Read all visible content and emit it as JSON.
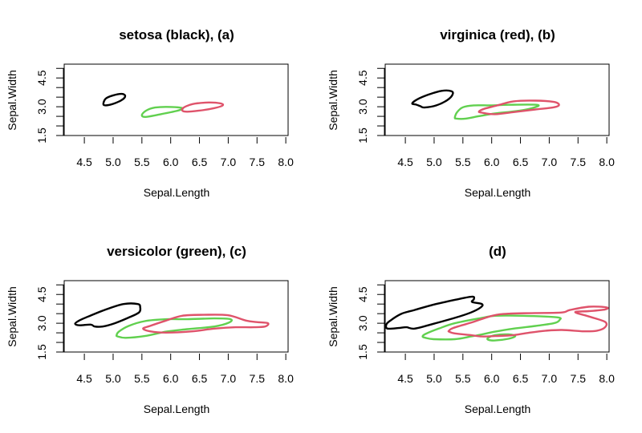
{
  "chart_data": [
    {
      "type": "line",
      "title": "setosa (black), (a)",
      "xlabel": "Sepal.Length",
      "ylabel": "Sepal.Width",
      "xlim": [
        4.15,
        8.04
      ],
      "ylim": [
        1.5,
        5.22
      ],
      "xticks": [
        "4.5",
        "5.0",
        "5.5",
        "6.0",
        "6.5",
        "7.0",
        "7.5",
        "8.0"
      ],
      "yticks": [
        1.5,
        2.0,
        2.5,
        3.0,
        3.5,
        4.0,
        4.5,
        5.0
      ],
      "ytick_labels": [
        "1.5",
        "3.0",
        "4.5"
      ],
      "grid": false,
      "series": [
        {
          "color": "#000000",
          "contours": [
            [
              [
                4.83,
                3.14
              ],
              [
                4.87,
                3.42
              ],
              [
                4.99,
                3.58
              ],
              [
                5.15,
                3.67
              ],
              [
                5.21,
                3.56
              ],
              [
                5.15,
                3.35
              ],
              [
                4.99,
                3.14
              ],
              [
                4.87,
                3.07
              ]
            ]
          ]
        },
        {
          "color": "#61D04F",
          "contours": [
            [
              [
                5.5,
                2.56
              ],
              [
                5.57,
                2.79
              ],
              [
                5.73,
                2.96
              ],
              [
                6.01,
                2.99
              ],
              [
                6.21,
                2.92
              ],
              [
                6.1,
                2.78
              ],
              [
                5.83,
                2.61
              ],
              [
                5.57,
                2.47
              ]
            ]
          ]
        },
        {
          "color": "#DF536B",
          "contours": [
            [
              [
                6.21,
                2.92
              ],
              [
                6.38,
                3.14
              ],
              [
                6.66,
                3.22
              ],
              [
                6.87,
                3.17
              ],
              [
                6.9,
                3.06
              ],
              [
                6.76,
                2.93
              ],
              [
                6.48,
                2.79
              ],
              [
                6.24,
                2.75
              ]
            ]
          ]
        }
      ]
    },
    {
      "type": "line",
      "title": "virginica (red), (b)",
      "xlabel": "Sepal.Length",
      "ylabel": "Sepal.Width",
      "xlim": [
        4.15,
        8.04
      ],
      "ylim": [
        1.5,
        5.22
      ],
      "xticks": [
        "4.5",
        "5.0",
        "5.5",
        "6.0",
        "6.5",
        "7.0",
        "7.5",
        "8.0"
      ],
      "yticks": [
        1.5,
        2.0,
        2.5,
        3.0,
        3.5,
        4.0,
        4.5,
        5.0
      ],
      "ytick_labels": [
        "1.5",
        "3.0",
        "4.5"
      ],
      "grid": false,
      "series": [
        {
          "color": "#000000",
          "contours": [
            [
              [
                4.62,
                3.17
              ],
              [
                4.71,
                3.39
              ],
              [
                4.9,
                3.63
              ],
              [
                5.13,
                3.83
              ],
              [
                5.3,
                3.81
              ],
              [
                5.32,
                3.63
              ],
              [
                5.23,
                3.35
              ],
              [
                5.04,
                3.07
              ],
              [
                4.83,
                2.96
              ],
              [
                4.76,
                3.03
              ],
              [
                4.69,
                3.11
              ]
            ]
          ]
        },
        {
          "color": "#61D04F",
          "contours": [
            [
              [
                5.36,
                2.44
              ],
              [
                5.4,
                2.72
              ],
              [
                5.5,
                2.97
              ],
              [
                5.69,
                3.07
              ],
              [
                6.01,
                3.07
              ],
              [
                6.29,
                3.1
              ],
              [
                6.78,
                3.1
              ],
              [
                6.75,
                2.97
              ],
              [
                6.48,
                2.79
              ],
              [
                6.06,
                2.65
              ],
              [
                5.78,
                2.51
              ],
              [
                5.55,
                2.38
              ],
              [
                5.39,
                2.38
              ]
            ]
          ]
        },
        {
          "color": "#DF536B",
          "contours": [
            [
              [
                5.78,
                2.75
              ],
              [
                5.87,
                2.89
              ],
              [
                6.1,
                3.07
              ],
              [
                6.38,
                3.28
              ],
              [
                6.76,
                3.32
              ],
              [
                7.08,
                3.25
              ],
              [
                7.17,
                3.1
              ],
              [
                7.08,
                2.97
              ],
              [
                6.76,
                2.86
              ],
              [
                6.38,
                2.72
              ],
              [
                6.06,
                2.61
              ],
              [
                5.83,
                2.69
              ]
            ]
          ]
        }
      ]
    },
    {
      "type": "line",
      "title": "versicolor (green), (c)",
      "xlabel": "Sepal.Length",
      "ylabel": "Sepal.Width",
      "xlim": [
        4.15,
        8.04
      ],
      "ylim": [
        1.5,
        5.22
      ],
      "xticks": [
        "4.5",
        "5.0",
        "5.5",
        "6.0",
        "6.5",
        "7.0",
        "7.5",
        "8.0"
      ],
      "yticks": [
        1.5,
        2.0,
        2.5,
        3.0,
        3.5,
        4.0,
        4.5,
        5.0
      ],
      "ytick_labels": [
        "1.5",
        "3.0",
        "4.5"
      ],
      "grid": false,
      "series": [
        {
          "color": "#000000",
          "contours": [
            [
              [
                4.34,
                2.97
              ],
              [
                4.41,
                3.14
              ],
              [
                4.57,
                3.35
              ],
              [
                4.85,
                3.69
              ],
              [
                5.18,
                4.0
              ],
              [
                5.43,
                4.0
              ],
              [
                5.47,
                3.83
              ],
              [
                5.45,
                3.56
              ],
              [
                5.26,
                3.28
              ],
              [
                5.03,
                3.0
              ],
              [
                4.82,
                2.83
              ],
              [
                4.68,
                2.83
              ],
              [
                4.61,
                2.93
              ],
              [
                4.42,
                2.89
              ]
            ]
          ]
        },
        {
          "color": "#61D04F",
          "contours": [
            [
              [
                5.06,
                2.38
              ],
              [
                5.1,
                2.56
              ],
              [
                5.27,
                2.86
              ],
              [
                5.55,
                3.11
              ],
              [
                5.92,
                3.21
              ],
              [
                6.29,
                3.21
              ],
              [
                6.76,
                3.25
              ],
              [
                7.04,
                3.21
              ],
              [
                7.01,
                3.03
              ],
              [
                6.76,
                2.83
              ],
              [
                6.29,
                2.69
              ],
              [
                5.92,
                2.56
              ],
              [
                5.55,
                2.33
              ],
              [
                5.22,
                2.24
              ],
              [
                5.08,
                2.31
              ]
            ]
          ]
        },
        {
          "color": "#DF536B",
          "contours": [
            [
              [
                5.52,
                2.72
              ],
              [
                5.64,
                2.86
              ],
              [
                5.92,
                3.14
              ],
              [
                6.2,
                3.39
              ],
              [
                6.57,
                3.44
              ],
              [
                6.99,
                3.42
              ],
              [
                7.31,
                3.14
              ],
              [
                7.5,
                3.06
              ],
              [
                7.69,
                3.0
              ],
              [
                7.64,
                2.83
              ],
              [
                7.45,
                2.79
              ],
              [
                7.13,
                2.79
              ],
              [
                6.76,
                2.72
              ],
              [
                6.38,
                2.58
              ],
              [
                5.92,
                2.51
              ],
              [
                5.64,
                2.58
              ]
            ]
          ]
        }
      ]
    },
    {
      "type": "line",
      "title": "(d)",
      "xlabel": "Sepal.Length",
      "ylabel": "Sepal.Width",
      "xlim": [
        4.15,
        8.04
      ],
      "ylim": [
        1.5,
        5.22
      ],
      "xticks": [
        "4.5",
        "5.0",
        "5.5",
        "6.0",
        "6.5",
        "7.0",
        "7.5",
        "8.0"
      ],
      "yticks": [
        1.5,
        2.0,
        2.5,
        3.0,
        3.5,
        4.0,
        4.5,
        5.0
      ],
      "ytick_labels": [
        "1.5",
        "3.0",
        "4.5"
      ],
      "grid": false,
      "series": [
        {
          "color": "#000000",
          "contours": [
            [
              [
                4.17,
                2.93
              ],
              [
                4.24,
                3.14
              ],
              [
                4.43,
                3.49
              ],
              [
                4.66,
                3.69
              ],
              [
                4.99,
                3.97
              ],
              [
                5.36,
                4.22
              ],
              [
                5.66,
                4.39
              ],
              [
                5.69,
                4.25
              ],
              [
                5.66,
                4.11
              ],
              [
                5.83,
                4.0
              ],
              [
                5.81,
                3.83
              ],
              [
                5.64,
                3.56
              ],
              [
                5.36,
                3.28
              ],
              [
                4.99,
                2.97
              ],
              [
                4.66,
                2.72
              ],
              [
                4.52,
                2.79
              ],
              [
                4.38,
                2.75
              ],
              [
                4.19,
                2.72
              ]
            ]
          ]
        },
        {
          "color": "#61D04F",
          "contours": [
            [
              [
                4.8,
                2.31
              ],
              [
                4.85,
                2.44
              ],
              [
                5.08,
                2.72
              ],
              [
                5.36,
                3.0
              ],
              [
                5.83,
                3.28
              ],
              [
                6.06,
                3.39
              ],
              [
                6.52,
                3.39
              ],
              [
                7.13,
                3.31
              ],
              [
                7.18,
                3.17
              ],
              [
                7.08,
                3.0
              ],
              [
                6.76,
                2.86
              ],
              [
                6.38,
                2.72
              ],
              [
                6.06,
                2.56
              ],
              [
                5.83,
                2.42
              ],
              [
                5.64,
                2.31
              ],
              [
                5.36,
                2.17
              ],
              [
                4.99,
                2.17
              ],
              [
                4.85,
                2.24
              ]
            ],
            [
              [
                5.94,
                2.24
              ],
              [
                6.06,
                2.38
              ],
              [
                6.29,
                2.42
              ],
              [
                6.41,
                2.33
              ],
              [
                6.29,
                2.19
              ],
              [
                6.06,
                2.1
              ],
              [
                5.94,
                2.14
              ]
            ]
          ]
        },
        {
          "color": "#DF536B",
          "contours": [
            [
              [
                5.26,
                2.61
              ],
              [
                5.33,
                2.75
              ],
              [
                5.64,
                3.03
              ],
              [
                6.01,
                3.39
              ],
              [
                6.29,
                3.5
              ],
              [
                6.76,
                3.53
              ],
              [
                7.22,
                3.56
              ],
              [
                7.36,
                3.69
              ],
              [
                7.69,
                3.86
              ],
              [
                7.99,
                3.83
              ],
              [
                7.97,
                3.72
              ],
              [
                7.69,
                3.63
              ],
              [
                7.45,
                3.58
              ],
              [
                7.69,
                3.35
              ],
              [
                7.97,
                3.07
              ],
              [
                7.97,
                2.79
              ],
              [
                7.83,
                2.61
              ],
              [
                7.6,
                2.58
              ],
              [
                7.22,
                2.65
              ],
              [
                6.94,
                2.61
              ],
              [
                6.66,
                2.51
              ],
              [
                6.38,
                2.38
              ],
              [
                6.06,
                2.33
              ],
              [
                5.83,
                2.31
              ],
              [
                5.64,
                2.38
              ],
              [
                5.36,
                2.47
              ],
              [
                5.26,
                2.56
              ]
            ]
          ]
        }
      ]
    }
  ]
}
